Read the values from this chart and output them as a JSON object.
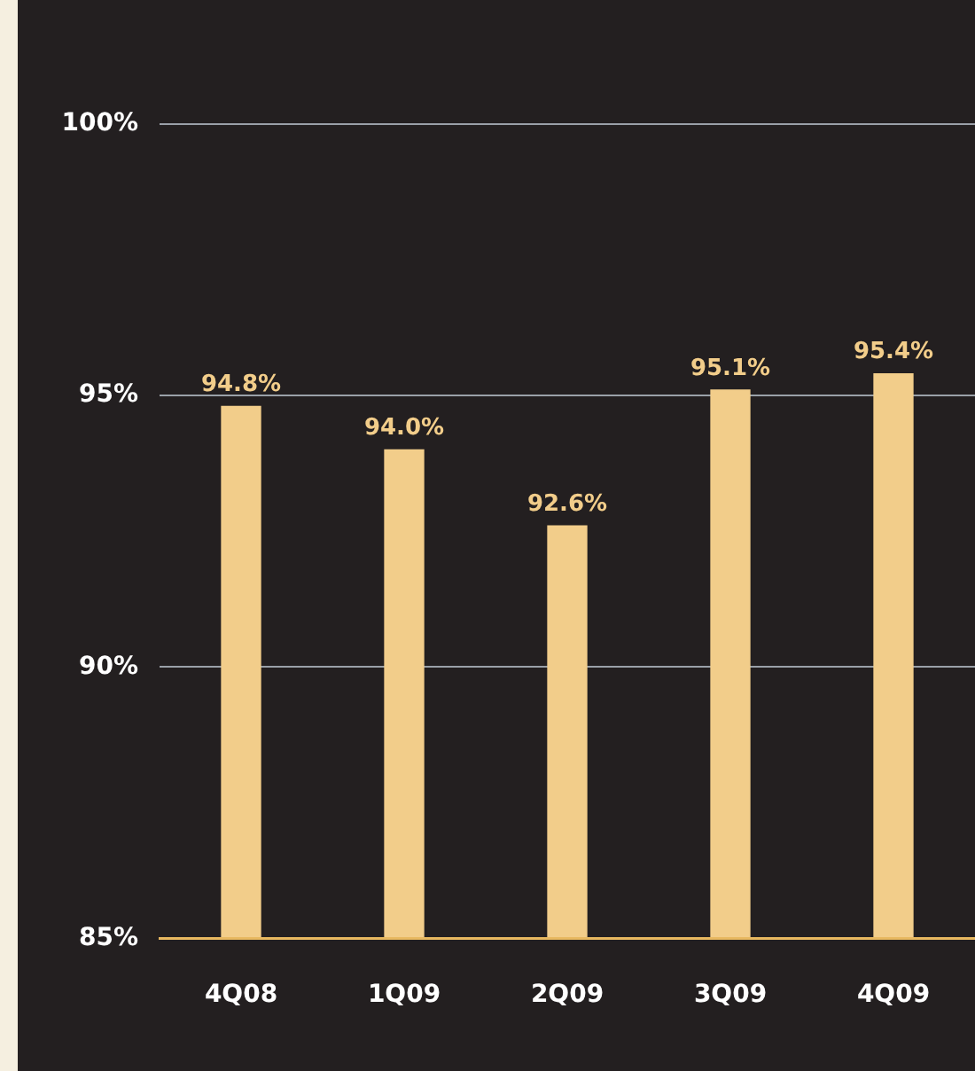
{
  "chart_data": {
    "type": "bar",
    "categories": [
      "4Q08",
      "1Q09",
      "2Q09",
      "3Q09",
      "4Q09"
    ],
    "values": [
      94.8,
      94.0,
      92.6,
      95.1,
      95.4
    ],
    "value_labels": [
      "94.8%",
      "94.0%",
      "92.6%",
      "95.1%",
      "95.4%"
    ],
    "data_labels": true,
    "color": "#f2cd8a",
    "ylim": [
      85,
      100
    ],
    "yticks": [
      {
        "value": 85,
        "label": "85%"
      },
      {
        "value": 90,
        "label": "90%"
      },
      {
        "value": 95,
        "label": "95%"
      },
      {
        "value": 100,
        "label": "100%"
      }
    ],
    "grid": "y",
    "legend": false
  }
}
